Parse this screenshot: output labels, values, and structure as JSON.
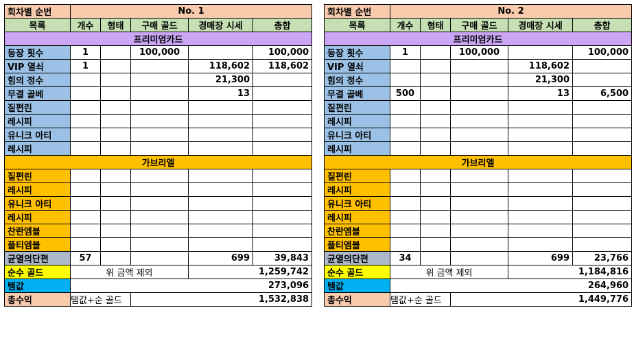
{
  "tables": [
    {
      "label": "회차별 순번",
      "title": "No. 1",
      "headers": [
        "목록",
        "개수",
        "형태",
        "구매 골드",
        "경매장 시세",
        "총합"
      ],
      "premium_label": "프리미엄카드",
      "premium_rows": [
        {
          "name": "등장 횟수",
          "count": "1",
          "form": "",
          "buy": "100,000",
          "market": "",
          "total": "100,000"
        },
        {
          "name": "VIP 열쇠",
          "count": "1",
          "form": "",
          "buy": "",
          "market": "118,602",
          "total": "118,602"
        },
        {
          "name": "힘의 정수",
          "count": "",
          "form": "",
          "buy": "",
          "market": "21,300",
          "total": ""
        },
        {
          "name": "무결 골베",
          "count": "",
          "form": "",
          "buy": "",
          "market": "13",
          "total": ""
        },
        {
          "name": "짙편린",
          "count": "",
          "form": "",
          "buy": "",
          "market": "",
          "total": ""
        },
        {
          "name": "레시피",
          "count": "",
          "form": "",
          "buy": "",
          "market": "",
          "total": ""
        },
        {
          "name": "유니크 아티",
          "count": "",
          "form": "",
          "buy": "",
          "market": "",
          "total": ""
        },
        {
          "name": "레시피",
          "count": "",
          "form": "",
          "buy": "",
          "market": "",
          "total": ""
        }
      ],
      "gabriel_label": "가브리엘",
      "gabriel_rows": [
        {
          "name": "짙편린",
          "count": "",
          "form": "",
          "buy": "",
          "market": "",
          "total": ""
        },
        {
          "name": "레시피",
          "count": "",
          "form": "",
          "buy": "",
          "market": "",
          "total": ""
        },
        {
          "name": "유니크 아티",
          "count": "",
          "form": "",
          "buy": "",
          "market": "",
          "total": ""
        },
        {
          "name": "레시피",
          "count": "",
          "form": "",
          "buy": "",
          "market": "",
          "total": ""
        },
        {
          "name": "찬란엠블",
          "count": "",
          "form": "",
          "buy": "",
          "market": "",
          "total": ""
        },
        {
          "name": "플티엠블",
          "count": "",
          "form": "",
          "buy": "",
          "market": "",
          "total": ""
        }
      ],
      "shard_row": {
        "name": "균열의단편",
        "count": "57",
        "form": "",
        "buy": "",
        "market": "699",
        "total": "39,843"
      },
      "pure_gold": {
        "label": "순수 골드",
        "note": "위 금액 제외",
        "value": "1,259,742"
      },
      "item_value": {
        "label": "템값",
        "value": "273,096"
      },
      "total_profit": {
        "label": "총수익",
        "note": "템값+순 골드",
        "value": "1,532,838"
      }
    },
    {
      "label": "회차별 순번",
      "title": "No. 2",
      "headers": [
        "목록",
        "개수",
        "형태",
        "구매 골드",
        "경매장 시세",
        "총합"
      ],
      "premium_label": "프리미엄카드",
      "premium_rows": [
        {
          "name": "등장 횟수",
          "count": "1",
          "form": "",
          "buy": "100,000",
          "market": "",
          "total": "100,000"
        },
        {
          "name": "VIP 열쇠",
          "count": "",
          "form": "",
          "buy": "",
          "market": "118,602",
          "total": ""
        },
        {
          "name": "힘의 정수",
          "count": "",
          "form": "",
          "buy": "",
          "market": "21,300",
          "total": ""
        },
        {
          "name": "무결 골베",
          "count": "500",
          "form": "",
          "buy": "",
          "market": "13",
          "total": "6,500"
        },
        {
          "name": "짙편린",
          "count": "",
          "form": "",
          "buy": "",
          "market": "",
          "total": ""
        },
        {
          "name": "레시피",
          "count": "",
          "form": "",
          "buy": "",
          "market": "",
          "total": ""
        },
        {
          "name": "유니크 아티",
          "count": "",
          "form": "",
          "buy": "",
          "market": "",
          "total": ""
        },
        {
          "name": "레시피",
          "count": "",
          "form": "",
          "buy": "",
          "market": "",
          "total": ""
        }
      ],
      "gabriel_label": "가브리엘",
      "gabriel_rows": [
        {
          "name": "짙편린",
          "count": "",
          "form": "",
          "buy": "",
          "market": "",
          "total": ""
        },
        {
          "name": "레시피",
          "count": "",
          "form": "",
          "buy": "",
          "market": "",
          "total": ""
        },
        {
          "name": "유니크 아티",
          "count": "",
          "form": "",
          "buy": "",
          "market": "",
          "total": ""
        },
        {
          "name": "레시피",
          "count": "",
          "form": "",
          "buy": "",
          "market": "",
          "total": ""
        },
        {
          "name": "찬란엠블",
          "count": "",
          "form": "",
          "buy": "",
          "market": "",
          "total": ""
        },
        {
          "name": "플티엠블",
          "count": "",
          "form": "",
          "buy": "",
          "market": "",
          "total": ""
        }
      ],
      "shard_row": {
        "name": "균열의단편",
        "count": "34",
        "form": "",
        "buy": "",
        "market": "699",
        "total": "23,766"
      },
      "pure_gold": {
        "label": "순수 골드",
        "note": "위 금액 제외",
        "value": "1,184,816"
      },
      "item_value": {
        "label": "템값",
        "value": "264,960"
      },
      "total_profit": {
        "label": "총수익",
        "note": "템값+순 골드",
        "value": "1,449,776"
      }
    }
  ]
}
